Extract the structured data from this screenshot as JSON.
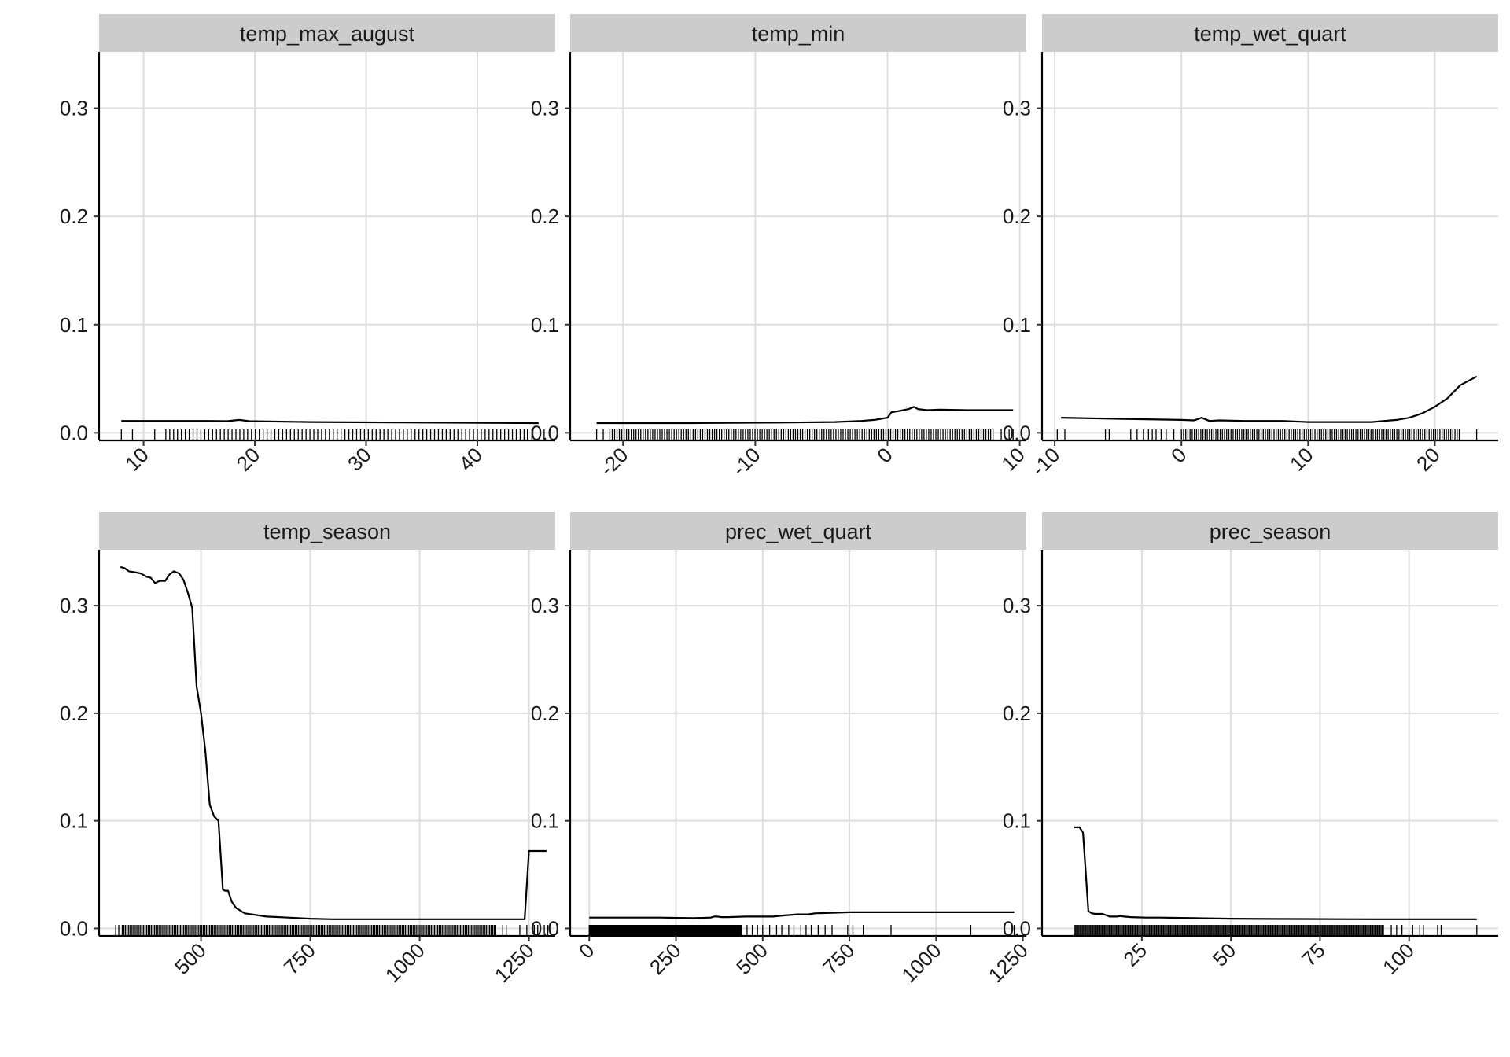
{
  "chart_data": [
    {
      "type": "line",
      "title": "temp_max_august",
      "xlim": [
        6,
        47
      ],
      "ylim": [
        -0.007,
        0.352
      ],
      "xticks": [
        10,
        20,
        30,
        40
      ],
      "xtick_labels": [
        "10",
        "20",
        "30",
        "40"
      ],
      "yticks": [
        0.0,
        0.1,
        0.2,
        0.3
      ],
      "ytick_labels": [
        "0.0",
        "0.1",
        "0.2",
        "0.3"
      ],
      "grid": true,
      "legend": "none",
      "x": [
        8,
        12,
        16,
        17.5,
        18.6,
        19.5,
        25,
        35,
        45.5
      ],
      "y": [
        0.011,
        0.011,
        0.011,
        0.0108,
        0.012,
        0.0108,
        0.01,
        0.0095,
        0.009
      ],
      "rug": {
        "from": 12,
        "to": 45,
        "step": 0.35,
        "extra": [
          8,
          9,
          11,
          46,
          44.5
        ]
      }
    },
    {
      "type": "line",
      "title": "temp_min",
      "xlim": [
        -24,
        10.5
      ],
      "ylim": [
        -0.007,
        0.352
      ],
      "xticks": [
        -20,
        -10,
        0,
        10
      ],
      "xtick_labels": [
        "-20",
        "-10",
        "0",
        "10"
      ],
      "yticks": [
        0.0,
        0.1,
        0.2,
        0.3
      ],
      "ytick_labels": [
        "0.0",
        "0.1",
        "0.2",
        "0.3"
      ],
      "grid": true,
      "legend": "none",
      "x": [
        -22,
        -15,
        -8,
        -4,
        -2,
        -1,
        -0.5,
        0,
        0.3,
        0.8,
        1.2,
        1.6,
        2.0,
        2.3,
        3,
        4,
        6,
        9.5
      ],
      "y": [
        0.009,
        0.009,
        0.0095,
        0.01,
        0.011,
        0.012,
        0.013,
        0.014,
        0.019,
        0.02,
        0.021,
        0.022,
        0.024,
        0.022,
        0.021,
        0.0215,
        0.021,
        0.021
      ],
      "rug": {
        "from": -21,
        "to": 8,
        "step": 0.18,
        "extra": [
          -22,
          -21.5,
          8.6,
          9.2,
          9.5
        ]
      }
    },
    {
      "type": "line",
      "title": "temp_wet_quart",
      "xlim": [
        -11,
        25
      ],
      "ylim": [
        -0.007,
        0.352
      ],
      "xticks": [
        -10,
        0,
        10,
        20
      ],
      "xtick_labels": [
        "-10",
        "0",
        "10",
        "20"
      ],
      "yticks": [
        0.0,
        0.1,
        0.2,
        0.3
      ],
      "ytick_labels": [
        "0.0",
        "0.1",
        "0.2",
        "0.3"
      ],
      "grid": true,
      "legend": "none",
      "x": [
        -9.5,
        -5,
        0,
        1.0,
        1.6,
        2.2,
        3,
        5,
        8,
        10,
        12,
        15,
        16,
        17,
        18,
        19,
        20,
        21,
        22,
        23.3
      ],
      "y": [
        0.014,
        0.013,
        0.012,
        0.0115,
        0.014,
        0.011,
        0.0115,
        0.011,
        0.011,
        0.01,
        0.01,
        0.01,
        0.011,
        0.012,
        0.014,
        0.018,
        0.024,
        0.032,
        0.044,
        0.052
      ],
      "rug": {
        "from": 0,
        "to": 22,
        "step": 0.17,
        "extra": [
          -9.8,
          -9.2,
          -6,
          -5.7,
          -4,
          -3.5,
          -3,
          -2.6,
          -2.3,
          -2,
          -1.6,
          -1.2,
          -0.6,
          23.3
        ]
      }
    },
    {
      "type": "line",
      "title": "temp_season",
      "xlim": [
        267,
        1310
      ],
      "ylim": [
        -0.007,
        0.352
      ],
      "xticks": [
        500,
        750,
        1000,
        1250
      ],
      "xtick_labels": [
        "500",
        "750",
        "1000",
        "1250"
      ],
      "yticks": [
        0.0,
        0.1,
        0.2,
        0.3
      ],
      "ytick_labels": [
        "0.0",
        "0.1",
        "0.2",
        "0.3"
      ],
      "grid": true,
      "legend": "none",
      "x": [
        316,
        325,
        335,
        350,
        362,
        375,
        385,
        395,
        405,
        418,
        428,
        438,
        450,
        460,
        470,
        480,
        490,
        500,
        510,
        520,
        530,
        540,
        550,
        555,
        562,
        570,
        580,
        600,
        650,
        700,
        750,
        800,
        900,
        1000,
        1100,
        1200,
        1240,
        1250,
        1260,
        1270,
        1280,
        1290
      ],
      "y": [
        0.336,
        0.335,
        0.332,
        0.331,
        0.33,
        0.327,
        0.326,
        0.321,
        0.323,
        0.323,
        0.329,
        0.332,
        0.33,
        0.324,
        0.312,
        0.298,
        0.225,
        0.2,
        0.165,
        0.115,
        0.104,
        0.1,
        0.036,
        0.035,
        0.035,
        0.025,
        0.019,
        0.014,
        0.011,
        0.01,
        0.009,
        0.0085,
        0.0085,
        0.0085,
        0.0085,
        0.0085,
        0.0085,
        0.072,
        0.072,
        0.072,
        0.072,
        0.072
      ],
      "rug": {
        "from": 320,
        "to": 1175,
        "step": 3.5,
        "extra": [
          305,
          312,
          1190,
          1198,
          1229,
          1245,
          1262,
          1270,
          1285,
          1293
        ]
      }
    },
    {
      "type": "line",
      "title": "prec_wet_quart",
      "xlim": [
        -55,
        1260
      ],
      "ylim": [
        -0.007,
        0.352
      ],
      "xticks": [
        0,
        250,
        500,
        750,
        1000,
        1250
      ],
      "xtick_labels": [
        "0",
        "250",
        "500",
        "750",
        "1000",
        "1250"
      ],
      "yticks": [
        0.0,
        0.1,
        0.2,
        0.3
      ],
      "ytick_labels": [
        "0.0",
        "0.1",
        "0.2",
        "0.3"
      ],
      "grid": true,
      "legend": "none",
      "x": [
        0,
        100,
        200,
        300,
        350,
        360,
        370,
        380,
        400,
        450,
        500,
        530,
        560,
        600,
        630,
        650,
        700,
        750,
        800,
        900,
        1000,
        1100,
        1225
      ],
      "y": [
        0.01,
        0.01,
        0.01,
        0.0095,
        0.01,
        0.011,
        0.011,
        0.0105,
        0.0105,
        0.011,
        0.011,
        0.011,
        0.012,
        0.013,
        0.013,
        0.014,
        0.0145,
        0.015,
        0.015,
        0.015,
        0.015,
        0.015,
        0.015
      ],
      "rug": {
        "from": 0,
        "to": 440,
        "step": 1.5,
        "extra": [
          455,
          470,
          485,
          500,
          520,
          540,
          555,
          575,
          590,
          610,
          625,
          640,
          660,
          680,
          700,
          745,
          760,
          790,
          870,
          1100,
          1225
        ]
      }
    },
    {
      "type": "line",
      "title": "prec_season",
      "xlim": [
        -3,
        125
      ],
      "ylim": [
        -0.007,
        0.352
      ],
      "xticks": [
        25,
        50,
        75,
        100
      ],
      "xtick_labels": [
        "25",
        "50",
        "75",
        "100"
      ],
      "yticks": [
        0.0,
        0.1,
        0.2,
        0.3
      ],
      "ytick_labels": [
        "0.0",
        "0.1",
        "0.2",
        "0.3"
      ],
      "grid": true,
      "legend": "none",
      "x": [
        6,
        7.5,
        8.5,
        10,
        11,
        12,
        14,
        16,
        18,
        19,
        20,
        22,
        26,
        30,
        40,
        50,
        60,
        70,
        80,
        90,
        100,
        110,
        119
      ],
      "y": [
        0.094,
        0.094,
        0.089,
        0.016,
        0.014,
        0.0135,
        0.0135,
        0.011,
        0.011,
        0.0115,
        0.011,
        0.0105,
        0.01,
        0.01,
        0.0095,
        0.009,
        0.0088,
        0.0087,
        0.0086,
        0.0085,
        0.0085,
        0.0085,
        0.0085
      ],
      "rug": {
        "from": 6,
        "to": 93,
        "step": 0.33,
        "extra": [
          95,
          96.5,
          98,
          101,
          103,
          104,
          108,
          109,
          119
        ]
      }
    }
  ]
}
